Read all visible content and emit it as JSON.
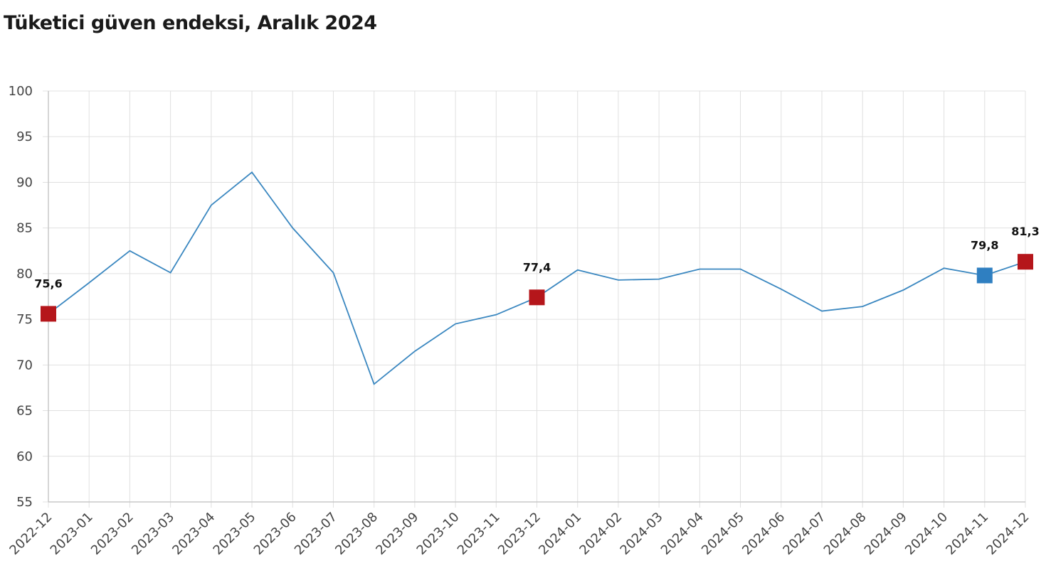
{
  "chart_data": {
    "type": "line",
    "title": "Tüketici güven endeksi, Aralık 2024",
    "xlabel": "",
    "ylabel": "",
    "ylim": [
      55,
      100
    ],
    "yticks": [
      100,
      95,
      90,
      85,
      80,
      75,
      70,
      65,
      60,
      55
    ],
    "grid": true,
    "categories": [
      "2022-12",
      "2023-01",
      "2023-02",
      "2023-03",
      "2023-04",
      "2023-05",
      "2023-06",
      "2023-07",
      "2023-08",
      "2023-09",
      "2023-10",
      "2023-11",
      "2023-12",
      "2024-01",
      "2024-02",
      "2024-03",
      "2024-04",
      "2024-05",
      "2024-06",
      "2024-07",
      "2024-08",
      "2024-09",
      "2024-10",
      "2024-11",
      "2024-12"
    ],
    "series": [
      {
        "name": "Tüketici güven endeksi",
        "color": "#3a87c0",
        "values": [
          75.6,
          79.0,
          82.5,
          80.1,
          87.5,
          91.1,
          85.0,
          80.1,
          67.9,
          71.5,
          74.5,
          75.5,
          77.4,
          80.4,
          79.3,
          79.4,
          80.5,
          80.5,
          78.3,
          75.9,
          76.4,
          78.2,
          80.6,
          79.8,
          81.3
        ]
      }
    ],
    "highlights": [
      {
        "category": "2022-12",
        "value": 75.6,
        "label": "75,6",
        "color": "#b5161b"
      },
      {
        "category": "2023-12",
        "value": 77.4,
        "label": "77,4",
        "color": "#b5161b"
      },
      {
        "category": "2024-11",
        "value": 79.8,
        "label": "79,8",
        "color": "#2f7fc1"
      },
      {
        "category": "2024-12",
        "value": 81.3,
        "label": "81,3",
        "color": "#b5161b"
      }
    ]
  }
}
